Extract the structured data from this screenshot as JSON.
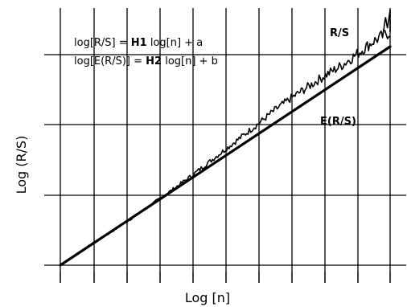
{
  "chart_data": {
    "type": "line",
    "title": "",
    "xlabel": "Log [n]",
    "ylabel": "Log  (R/S)",
    "grid": true,
    "axis_tick_labels": false,
    "xlim": [
      0,
      10
    ],
    "ylim": [
      0,
      7
    ],
    "equations": [
      {
        "parts": [
          {
            "text": "log[R/S] = ",
            "bold": false
          },
          {
            "text": "H1",
            "bold": true
          },
          {
            "text": " log[n] + a",
            "bold": false
          }
        ]
      },
      {
        "parts": [
          {
            "text": "log[E(R/S)] = ",
            "bold": false
          },
          {
            "text": "H2",
            "bold": true
          },
          {
            "text": " log[n] + b",
            "bold": false
          }
        ]
      }
    ],
    "series": [
      {
        "name": "R/S",
        "label_position": "top-right",
        "x": [
          0,
          0.5,
          1,
          1.5,
          2,
          2.5,
          3,
          3.5,
          4,
          4.5,
          5,
          5.5,
          6,
          6.5,
          7,
          7.5,
          8,
          8.5,
          9,
          9.5,
          10
        ],
        "y": [
          0,
          0.3,
          0.6,
          0.88,
          1.18,
          1.48,
          1.8,
          2.12,
          2.45,
          2.8,
          3.15,
          3.5,
          3.85,
          4.22,
          4.55,
          4.85,
          5.15,
          5.42,
          5.75,
          6.1,
          6.35
        ]
      },
      {
        "name": "E(R/S)",
        "label_position": "right",
        "x": [
          0,
          10
        ],
        "y": [
          0,
          5.95
        ]
      }
    ]
  }
}
